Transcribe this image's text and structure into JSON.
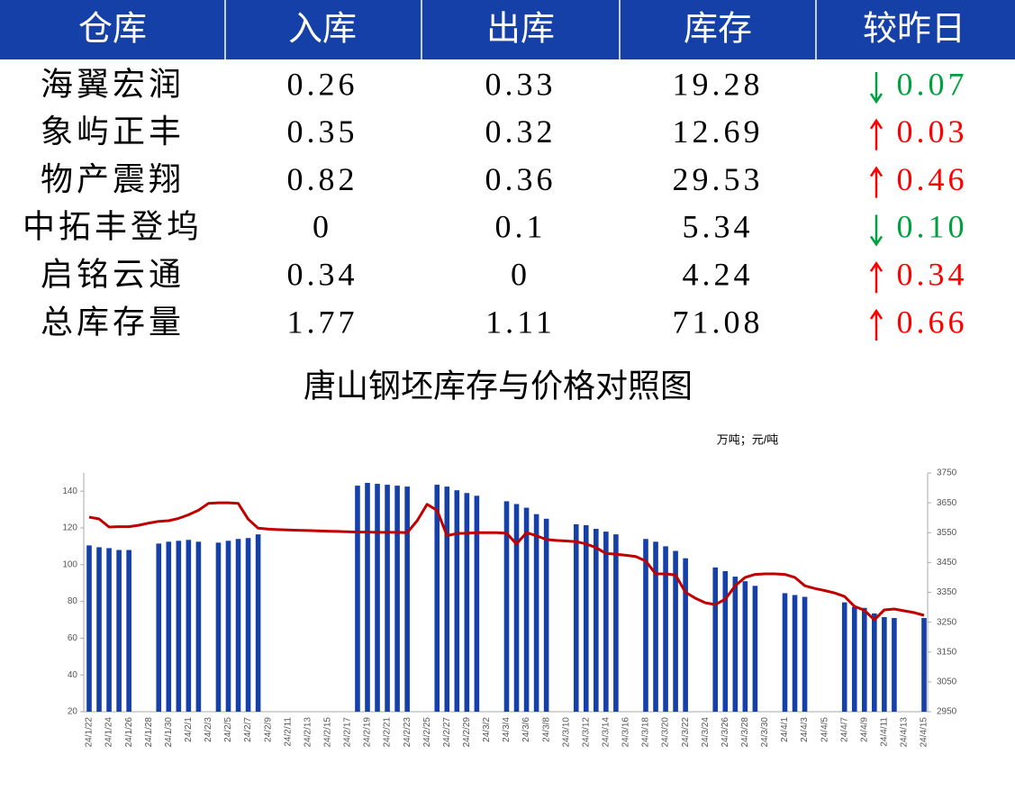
{
  "table": {
    "header": [
      "仓库",
      "入库",
      "出库",
      "库存",
      "较昨日"
    ],
    "rows": [
      [
        "海翼宏润",
        "0.26",
        "0.33",
        "19.28",
        "0.07"
      ],
      [
        "象屿正丰",
        "0.35",
        "0.32",
        "12.69",
        "0.03"
      ],
      [
        "物产震翔",
        "0.82",
        "0.36",
        "29.53",
        "0.46"
      ],
      [
        "中拓丰登坞",
        "0",
        "0.1",
        "5.34",
        "0.10"
      ],
      [
        "启铭云通",
        "0.34",
        "0",
        "4.24",
        "0.34"
      ],
      [
        "总库存量",
        "1.77",
        "1.11",
        "71.08",
        "0.66"
      ]
    ],
    "directions": [
      "down",
      "up",
      "up",
      "down",
      "up",
      "up"
    ],
    "up_color": "#ff0000",
    "down_color": "#00a040",
    "header_color": "#1540a8"
  },
  "chart_data": {
    "type": "bar",
    "title": "唐山钢坯库存与价格对照图",
    "unit_label": "万吨；元/吨",
    "categories": [
      "24/1/22",
      null,
      "24/1/24",
      null,
      "24/1/26",
      null,
      "24/1/28",
      null,
      "24/1/30",
      null,
      "24/2/1",
      null,
      "24/2/3",
      null,
      "24/2/5",
      null,
      "24/2/7",
      null,
      "24/2/9",
      null,
      "24/2/11",
      null,
      "24/2/13",
      null,
      "24/2/15",
      null,
      "24/2/17",
      null,
      "24/2/19",
      null,
      "24/2/21",
      null,
      "24/2/23",
      null,
      "24/2/25",
      null,
      "24/2/27",
      null,
      "24/2/29",
      null,
      "24/3/2",
      null,
      "24/3/4",
      null,
      "24/3/6",
      null,
      "24/3/8",
      null,
      "24/3/10",
      null,
      "24/3/12",
      null,
      "24/3/14",
      null,
      "24/3/16",
      null,
      "24/3/18",
      null,
      "24/3/20",
      null,
      "24/3/22",
      null,
      "24/3/24",
      null,
      "24/3/26",
      null,
      "24/3/28",
      null,
      "24/3/30",
      null,
      "24/4/1",
      null,
      "24/4/3",
      null,
      "24/4/5",
      null,
      "24/4/7",
      null,
      "24/4/9",
      null,
      "24/4/11",
      null,
      "24/4/13",
      null,
      "24/4/15"
    ],
    "series": [
      {
        "type": "bar",
        "color": "#1540a8",
        "values": [
          110.5,
          109.5,
          109,
          108,
          108,
          null,
          null,
          111.5,
          112.5,
          113,
          113.5,
          112.5,
          null,
          112,
          113,
          114,
          114.5,
          116.5,
          null,
          null,
          null,
          null,
          null,
          null,
          null,
          null,
          null,
          143,
          144.5,
          144,
          143.5,
          143,
          142.5,
          null,
          null,
          143.5,
          142.5,
          140.5,
          139,
          137.5,
          null,
          null,
          134.5,
          133,
          131,
          127.5,
          125,
          null,
          null,
          122,
          121.5,
          119.5,
          118,
          116.5,
          null,
          null,
          114,
          112.5,
          110,
          107.5,
          103.5,
          null,
          null,
          98.5,
          96.5,
          93.5,
          91,
          88.5,
          null,
          null,
          84.5,
          83.5,
          82.5,
          null,
          null,
          null,
          79.5,
          77,
          76.5,
          73.5,
          71.5,
          71,
          null,
          null,
          71
        ]
      },
      {
        "type": "line",
        "axis": "y2",
        "color": "#c00000",
        "values": [
          3602,
          3596,
          3569,
          3570,
          3570,
          3575,
          3582,
          3588,
          3590,
          3598,
          3610,
          3625,
          3648,
          3650,
          3650,
          3648,
          3595,
          3565,
          3562,
          3560,
          3559,
          3558,
          3557,
          3556,
          3555,
          3554,
          3553,
          3552,
          3552,
          3551,
          3551,
          3551,
          3550,
          3590,
          3645,
          3625,
          3540,
          3547,
          3548,
          3550,
          3550,
          3550,
          3548,
          3512,
          3550,
          3540,
          3527,
          3524,
          3522,
          3520,
          3512,
          3500,
          3480,
          3478,
          3474,
          3470,
          3455,
          3412,
          3412,
          3408,
          3350,
          3330,
          3315,
          3309,
          3327,
          3372,
          3400,
          3410,
          3412,
          3412,
          3410,
          3400,
          3372,
          3363,
          3356,
          3348,
          3336,
          3303,
          3290,
          3258,
          3291,
          3294,
          3288,
          3282,
          3273
        ]
      }
    ],
    "ylim": [
      20,
      150
    ],
    "yticks": [
      20,
      40,
      60,
      80,
      100,
      120,
      140
    ],
    "y2lim": [
      2950,
      3750
    ],
    "y2ticks": [
      2950,
      3050,
      3150,
      3250,
      3350,
      3450,
      3550,
      3650,
      3750
    ]
  }
}
